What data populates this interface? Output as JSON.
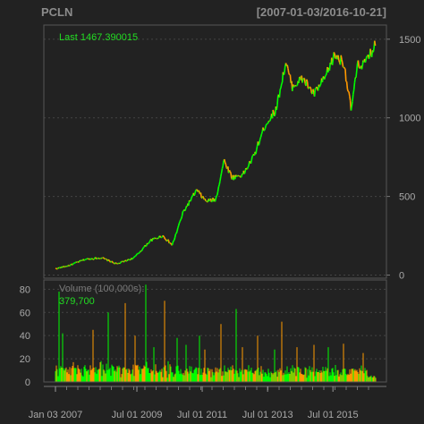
{
  "chart_data": {
    "type": "line",
    "title": "PCLN",
    "date_range": "[2007-01-03/2016-10-21]",
    "price_panel": {
      "annotation_label": "Last",
      "last_value": "1467.390015",
      "yticks": [
        0,
        500,
        1000,
        1500
      ],
      "ylim": [
        -20,
        1590
      ],
      "series": {
        "name": "PCLN close",
        "x": [
          "2007-01-03",
          "2007-06-01",
          "2007-12-01",
          "2008-06-01",
          "2008-11-20",
          "2009-06-01",
          "2009-12-01",
          "2010-04-15",
          "2010-08-01",
          "2010-12-01",
          "2011-05-01",
          "2011-08-10",
          "2011-12-01",
          "2012-03-01",
          "2012-06-01",
          "2012-10-01",
          "2013-02-01",
          "2013-06-01",
          "2013-10-01",
          "2014-01-20",
          "2014-04-01",
          "2014-08-01",
          "2014-12-01",
          "2015-04-01",
          "2015-07-20",
          "2015-11-01",
          "2016-01-20",
          "2016-04-01",
          "2016-07-01",
          "2016-10-21"
        ],
        "values": [
          40,
          60,
          100,
          110,
          70,
          110,
          220,
          250,
          190,
          400,
          540,
          470,
          480,
          730,
          620,
          640,
          760,
          950,
          1050,
          1350,
          1200,
          1250,
          1150,
          1250,
          1400,
          1350,
          1050,
          1330,
          1350,
          1467
        ]
      }
    },
    "volume_panel": {
      "label": "Volume (100,000s):",
      "last_value": "379,700",
      "yticks": [
        0,
        20,
        40,
        60,
        80
      ],
      "ylim": [
        0,
        88
      ]
    },
    "x_axis": {
      "ticks": [
        {
          "date": "2007-01-03",
          "label": "Jan 03 2007"
        },
        {
          "date": "2009-07-01",
          "label": "Jul 01 2009"
        },
        {
          "date": "2011-07-01",
          "label": "Jul 01 2011"
        },
        {
          "date": "2013-07-01",
          "label": "Jul 01 2013"
        },
        {
          "date": "2015-07-01",
          "label": "Jul 01 2015"
        }
      ]
    },
    "colors": {
      "background": "#222222",
      "up": "#00ff00",
      "down": "#ff9900",
      "grid": "#444444",
      "text": "#a9a9a9",
      "last_text": "#22dd22"
    }
  }
}
